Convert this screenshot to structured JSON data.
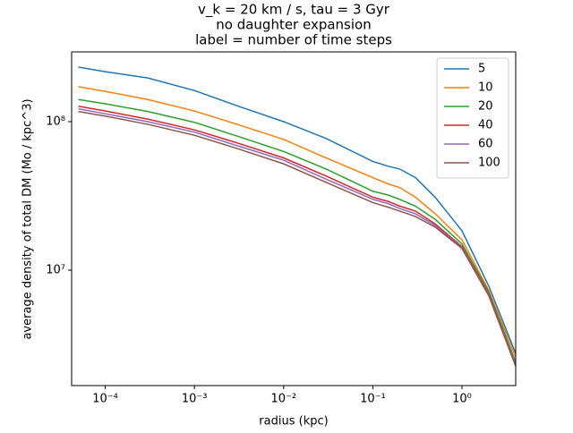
{
  "chart_data": {
    "type": "line",
    "title": [
      "v_k = 20 km / s, tau = 3 Gyr",
      "no daughter expansion",
      "label = number of time steps"
    ],
    "xlabel": "radius (kpc)",
    "ylabel": "average density of total DM (Mo / kpc^3)",
    "xscale": "log",
    "yscale": "log",
    "xlim": [
      4.2e-05,
      4
    ],
    "ylim": [
      1670000,
      295000000
    ],
    "xticks": [
      {
        "value": 0.0001,
        "label": "10⁻⁴"
      },
      {
        "value": 0.001,
        "label": "10⁻³"
      },
      {
        "value": 0.01,
        "label": "10⁻²"
      },
      {
        "value": 0.1,
        "label": "10⁻¹"
      },
      {
        "value": 1,
        "label": "10⁰"
      }
    ],
    "yticks": [
      {
        "value": 10000000,
        "label": "10⁷"
      },
      {
        "value": 100000000,
        "label": "10⁸"
      }
    ],
    "legend": "upper right",
    "x": [
      5e-05,
      0.0001,
      0.0003,
      0.001,
      0.003,
      0.01,
      0.03,
      0.1,
      0.15,
      0.2,
      0.3,
      0.5,
      1,
      2,
      4
    ],
    "series": [
      {
        "name": "5",
        "color": "#1f77b4",
        "values": [
          233000000,
          217000000,
          197000000,
          162000000,
          128000000,
          100000000,
          77000000,
          54000000,
          50000000,
          48000000,
          42000000,
          31000000,
          18400000,
          7800000,
          2750000
        ]
      },
      {
        "name": "10",
        "color": "#ff7f0e",
        "values": [
          172000000,
          160000000,
          141000000,
          118000000,
          96000000,
          76000000,
          57000000,
          42000000,
          38000000,
          36000000,
          31000000,
          24000000,
          16000000,
          7300000,
          2600000
        ]
      },
      {
        "name": "20",
        "color": "#2ca02c",
        "values": [
          141000000,
          132000000,
          117000000,
          99000000,
          80000000,
          63000000,
          48000000,
          34000000,
          32000000,
          30000000,
          27000000,
          22000000,
          15000000,
          7100000,
          2400000
        ]
      },
      {
        "name": "40",
        "color": "#d62728",
        "values": [
          127000000,
          118000000,
          104000000,
          88000000,
          72000000,
          57000000,
          43000000,
          31000000,
          29000000,
          27000000,
          25000000,
          20500000,
          14400000,
          6900000,
          2300000
        ]
      },
      {
        "name": "60",
        "color": "#9467bd",
        "values": [
          122000000,
          113000000,
          100000000,
          85000000,
          69000000,
          55000000,
          41000000,
          30000000,
          28000000,
          26000000,
          24000000,
          20000000,
          14200000,
          6800000,
          2300000
        ]
      },
      {
        "name": "100",
        "color": "#8c564b",
        "values": [
          117000000,
          109000000,
          96000000,
          81000000,
          66000000,
          52000000,
          39000000,
          28500000,
          26500000,
          25000000,
          23000000,
          19500000,
          14000000,
          6700000,
          2250000
        ]
      }
    ]
  }
}
